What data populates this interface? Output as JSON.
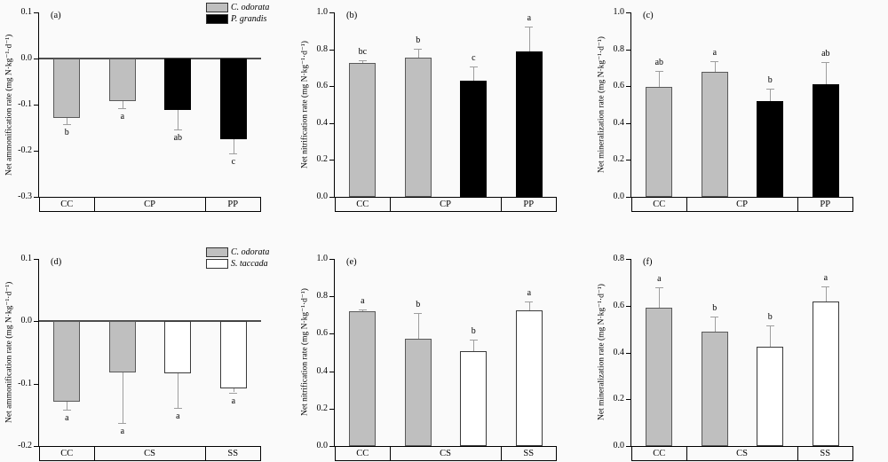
{
  "figure": {
    "background": "#fafafa",
    "series_colors": {
      "C. odorata": "#bfbfbf",
      "P. grandis": "#000000",
      "S. taccada": "#ffffff"
    },
    "series_borders": {
      "C. odorata": "#5a5a5a",
      "P. grandis": "#000000",
      "S. taccada": "#3a3a3a"
    },
    "axis_color": "#000000",
    "error_bar_color": "#9e9e9e",
    "zero_line_color": "#4d4d4d",
    "letter_color": "#000000"
  },
  "chart_data": [
    {
      "id": "a",
      "panel_label": "(a)",
      "type": "bar",
      "ylabel": "Net ammonification rate (mg N·kg⁻¹·d⁻¹)",
      "ylim": [
        -0.3,
        0.1
      ],
      "yticks": [
        {
          "v": 0.1,
          "label": "0.1"
        },
        {
          "v": 0.0,
          "label": "0.0"
        },
        {
          "v": -0.1,
          "label": "-0.1"
        },
        {
          "v": -0.2,
          "label": "-0.2"
        },
        {
          "v": -0.3,
          "label": "-0.3"
        }
      ],
      "grid": false,
      "zero_line": true,
      "groups": [
        {
          "label": "CC",
          "span": 0.25
        },
        {
          "label": "CP",
          "span": 0.5
        },
        {
          "label": "PP",
          "span": 0.25
        }
      ],
      "bars": [
        {
          "group": "CC",
          "series": "C. odorata",
          "value": -0.128,
          "error": 0.014,
          "letter": "b"
        },
        {
          "group": "CP",
          "series": "C. odorata",
          "value": -0.093,
          "error": 0.014,
          "letter": "a"
        },
        {
          "group": "CP",
          "series": "P. grandis",
          "value": -0.111,
          "error": 0.043,
          "letter": "ab"
        },
        {
          "group": "PP",
          "series": "P. grandis",
          "value": -0.175,
          "error": 0.031,
          "letter": "c"
        }
      ],
      "legend": {
        "position": "top-right",
        "items": [
          {
            "label": "C. odorata"
          },
          {
            "label": "P. grandis"
          }
        ]
      }
    },
    {
      "id": "b",
      "panel_label": "(b)",
      "type": "bar",
      "ylabel": "Net nitrification rate (mg N·kg⁻¹·d⁻¹)",
      "ylim": [
        0.0,
        1.0
      ],
      "yticks": [
        {
          "v": 1.0,
          "label": "1.0"
        },
        {
          "v": 0.8,
          "label": "0.8"
        },
        {
          "v": 0.6,
          "label": "0.6"
        },
        {
          "v": 0.4,
          "label": "0.4"
        },
        {
          "v": 0.2,
          "label": "0.2"
        },
        {
          "v": 0.0,
          "label": "0.0"
        }
      ],
      "grid": false,
      "zero_line": false,
      "groups": [
        {
          "label": "CC",
          "span": 0.25
        },
        {
          "label": "CP",
          "span": 0.5
        },
        {
          "label": "PP",
          "span": 0.25
        }
      ],
      "bars": [
        {
          "group": "CC",
          "series": "C. odorata",
          "value": 0.728,
          "error": 0.012,
          "letter": "bc"
        },
        {
          "group": "CP",
          "series": "C. odorata",
          "value": 0.756,
          "error": 0.048,
          "letter": "b"
        },
        {
          "group": "CP",
          "series": "P. grandis",
          "value": 0.63,
          "error": 0.078,
          "letter": "c"
        },
        {
          "group": "PP",
          "series": "P. grandis",
          "value": 0.788,
          "error": 0.134,
          "letter": "a"
        }
      ],
      "legend": null
    },
    {
      "id": "c",
      "panel_label": "(c)",
      "type": "bar",
      "ylabel": "Net mineralization rate (mg N·kg⁻¹·d⁻¹)",
      "ylim": [
        0.0,
        1.0
      ],
      "yticks": [
        {
          "v": 1.0,
          "label": "1.0"
        },
        {
          "v": 0.8,
          "label": "0.8"
        },
        {
          "v": 0.6,
          "label": "0.6"
        },
        {
          "v": 0.4,
          "label": "0.4"
        },
        {
          "v": 0.2,
          "label": "0.2"
        },
        {
          "v": 0.0,
          "label": "0.0"
        }
      ],
      "grid": false,
      "zero_line": false,
      "groups": [
        {
          "label": "CC",
          "span": 0.25
        },
        {
          "label": "CP",
          "span": 0.5
        },
        {
          "label": "PP",
          "span": 0.25
        }
      ],
      "bars": [
        {
          "group": "CC",
          "series": "C. odorata",
          "value": 0.598,
          "error": 0.085,
          "letter": "ab"
        },
        {
          "group": "CP",
          "series": "C. odorata",
          "value": 0.679,
          "error": 0.056,
          "letter": "a"
        },
        {
          "group": "CP",
          "series": "P. grandis",
          "value": 0.518,
          "error": 0.069,
          "letter": "b"
        },
        {
          "group": "PP",
          "series": "P. grandis",
          "value": 0.609,
          "error": 0.122,
          "letter": "ab"
        }
      ],
      "legend": null
    },
    {
      "id": "d",
      "panel_label": "(d)",
      "type": "bar",
      "ylabel": "Net ammonification rate (mg N·kg⁻¹·d⁻¹)",
      "ylim": [
        -0.2,
        0.1
      ],
      "yticks": [
        {
          "v": 0.1,
          "label": "0.1"
        },
        {
          "v": 0.0,
          "label": "0.0"
        },
        {
          "v": -0.1,
          "label": "-0.1"
        },
        {
          "v": -0.2,
          "label": "-0.2"
        }
      ],
      "grid": false,
      "zero_line": true,
      "groups": [
        {
          "label": "CC",
          "span": 0.25
        },
        {
          "label": "CS",
          "span": 0.5
        },
        {
          "label": "SS",
          "span": 0.25
        }
      ],
      "bars": [
        {
          "group": "CC",
          "series": "C. odorata",
          "value": -0.129,
          "error": 0.013,
          "letter": "a"
        },
        {
          "group": "CS",
          "series": "C. odorata",
          "value": -0.082,
          "error": 0.081,
          "letter": "a"
        },
        {
          "group": "CS",
          "series": "S. taccada",
          "value": -0.083,
          "error": 0.056,
          "letter": "a"
        },
        {
          "group": "SS",
          "series": "S. taccada",
          "value": -0.107,
          "error": 0.007,
          "letter": "a"
        }
      ],
      "legend": {
        "position": "top-right",
        "items": [
          {
            "label": "C. odorata"
          },
          {
            "label": "S. taccada"
          }
        ]
      }
    },
    {
      "id": "e",
      "panel_label": "(e)",
      "type": "bar",
      "ylabel": "Net nitrification rate (mg N·kg⁻¹·d⁻¹)",
      "ylim": [
        0.0,
        1.0
      ],
      "yticks": [
        {
          "v": 1.0,
          "label": "1.0"
        },
        {
          "v": 0.8,
          "label": "0.8"
        },
        {
          "v": 0.6,
          "label": "0.6"
        },
        {
          "v": 0.4,
          "label": "0.4"
        },
        {
          "v": 0.2,
          "label": "0.2"
        },
        {
          "v": 0.0,
          "label": "0.0"
        }
      ],
      "grid": false,
      "zero_line": false,
      "groups": [
        {
          "label": "CC",
          "span": 0.25
        },
        {
          "label": "CS",
          "span": 0.5
        },
        {
          "label": "SS",
          "span": 0.25
        }
      ],
      "bars": [
        {
          "group": "CC",
          "series": "C. odorata",
          "value": 0.722,
          "error": 0.008,
          "letter": "a"
        },
        {
          "group": "CS",
          "series": "C. odorata",
          "value": 0.573,
          "error": 0.138,
          "letter": "b"
        },
        {
          "group": "CS",
          "series": "S. taccada",
          "value": 0.509,
          "error": 0.06,
          "letter": "b"
        },
        {
          "group": "SS",
          "series": "S. taccada",
          "value": 0.725,
          "error": 0.048,
          "letter": "a"
        }
      ],
      "legend": null
    },
    {
      "id": "f",
      "panel_label": "(f)",
      "type": "bar",
      "ylabel": "Net mineralization rate (mg N·kg⁻¹·d⁻¹)",
      "ylim": [
        0.0,
        0.8
      ],
      "yticks": [
        {
          "v": 0.8,
          "label": "0.8"
        },
        {
          "v": 0.6,
          "label": "0.6"
        },
        {
          "v": 0.4,
          "label": "0.4"
        },
        {
          "v": 0.2,
          "label": "0.2"
        },
        {
          "v": 0.0,
          "label": "0.0"
        }
      ],
      "grid": false,
      "zero_line": false,
      "groups": [
        {
          "label": "CC",
          "span": 0.25
        },
        {
          "label": "CS",
          "span": 0.5
        },
        {
          "label": "SS",
          "span": 0.25
        }
      ],
      "bars": [
        {
          "group": "CC",
          "series": "C. odorata",
          "value": 0.593,
          "error": 0.086,
          "letter": "a"
        },
        {
          "group": "CS",
          "series": "C. odorata",
          "value": 0.489,
          "error": 0.063,
          "letter": "b"
        },
        {
          "group": "CS",
          "series": "S. taccada",
          "value": 0.426,
          "error": 0.088,
          "letter": "b"
        },
        {
          "group": "SS",
          "series": "S. taccada",
          "value": 0.618,
          "error": 0.064,
          "letter": "a"
        }
      ],
      "legend": null
    }
  ]
}
